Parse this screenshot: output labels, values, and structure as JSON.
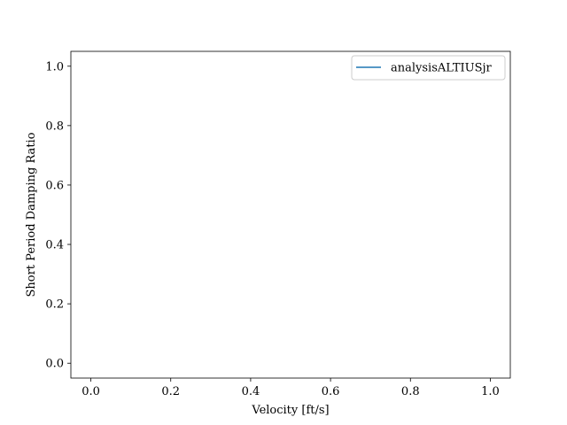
{
  "chart_data": {
    "type": "line",
    "xlabel": "Velocity [ft/s]",
    "ylabel": "Short Period Damping Ratio",
    "xlim": [
      -0.05,
      1.05
    ],
    "ylim": [
      -0.05,
      1.05
    ],
    "xticks": [
      0.0,
      0.2,
      0.4,
      0.6,
      0.8,
      1.0
    ],
    "yticks": [
      0.0,
      0.2,
      0.4,
      0.6,
      0.8,
      1.0
    ],
    "xtick_labels": [
      "0.0",
      "0.2",
      "0.4",
      "0.6",
      "0.8",
      "1.0"
    ],
    "ytick_labels": [
      "0.0",
      "0.2",
      "0.4",
      "0.6",
      "0.8",
      "1.0"
    ],
    "grid": false,
    "legend_position": "top-right",
    "series": [
      {
        "name": "analysisALTIUSjr",
        "x": [],
        "y": [],
        "color": "#1f77b4"
      }
    ]
  }
}
